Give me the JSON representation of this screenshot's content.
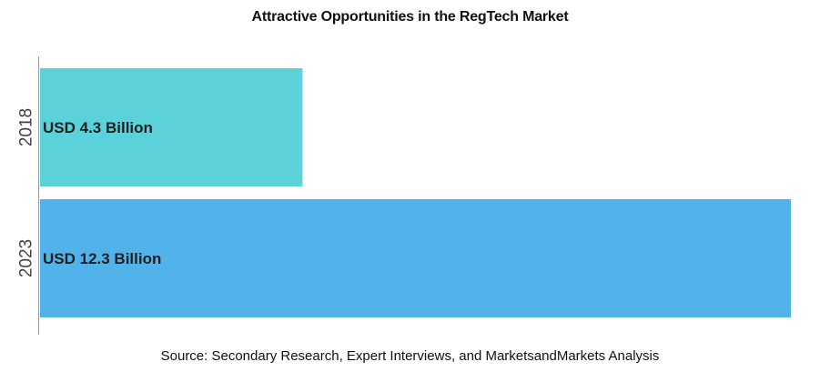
{
  "chart_data": {
    "type": "bar",
    "orientation": "horizontal",
    "title": "Attractive Opportunities in the RegTech Market",
    "categories": [
      "2018",
      "2023"
    ],
    "values": [
      4.3,
      12.3
    ],
    "data_labels": [
      "USD 4.3 Billion",
      "USD 12.3 Billion"
    ],
    "unit": "USD Billion",
    "xlim": [
      0,
      12.3
    ],
    "grid": false,
    "legend": "none",
    "colors": [
      "#5bd1d9",
      "#52b2ea"
    ],
    "source": "Source: Secondary Research, Expert Interviews, and MarketsandMarkets Analysis"
  }
}
